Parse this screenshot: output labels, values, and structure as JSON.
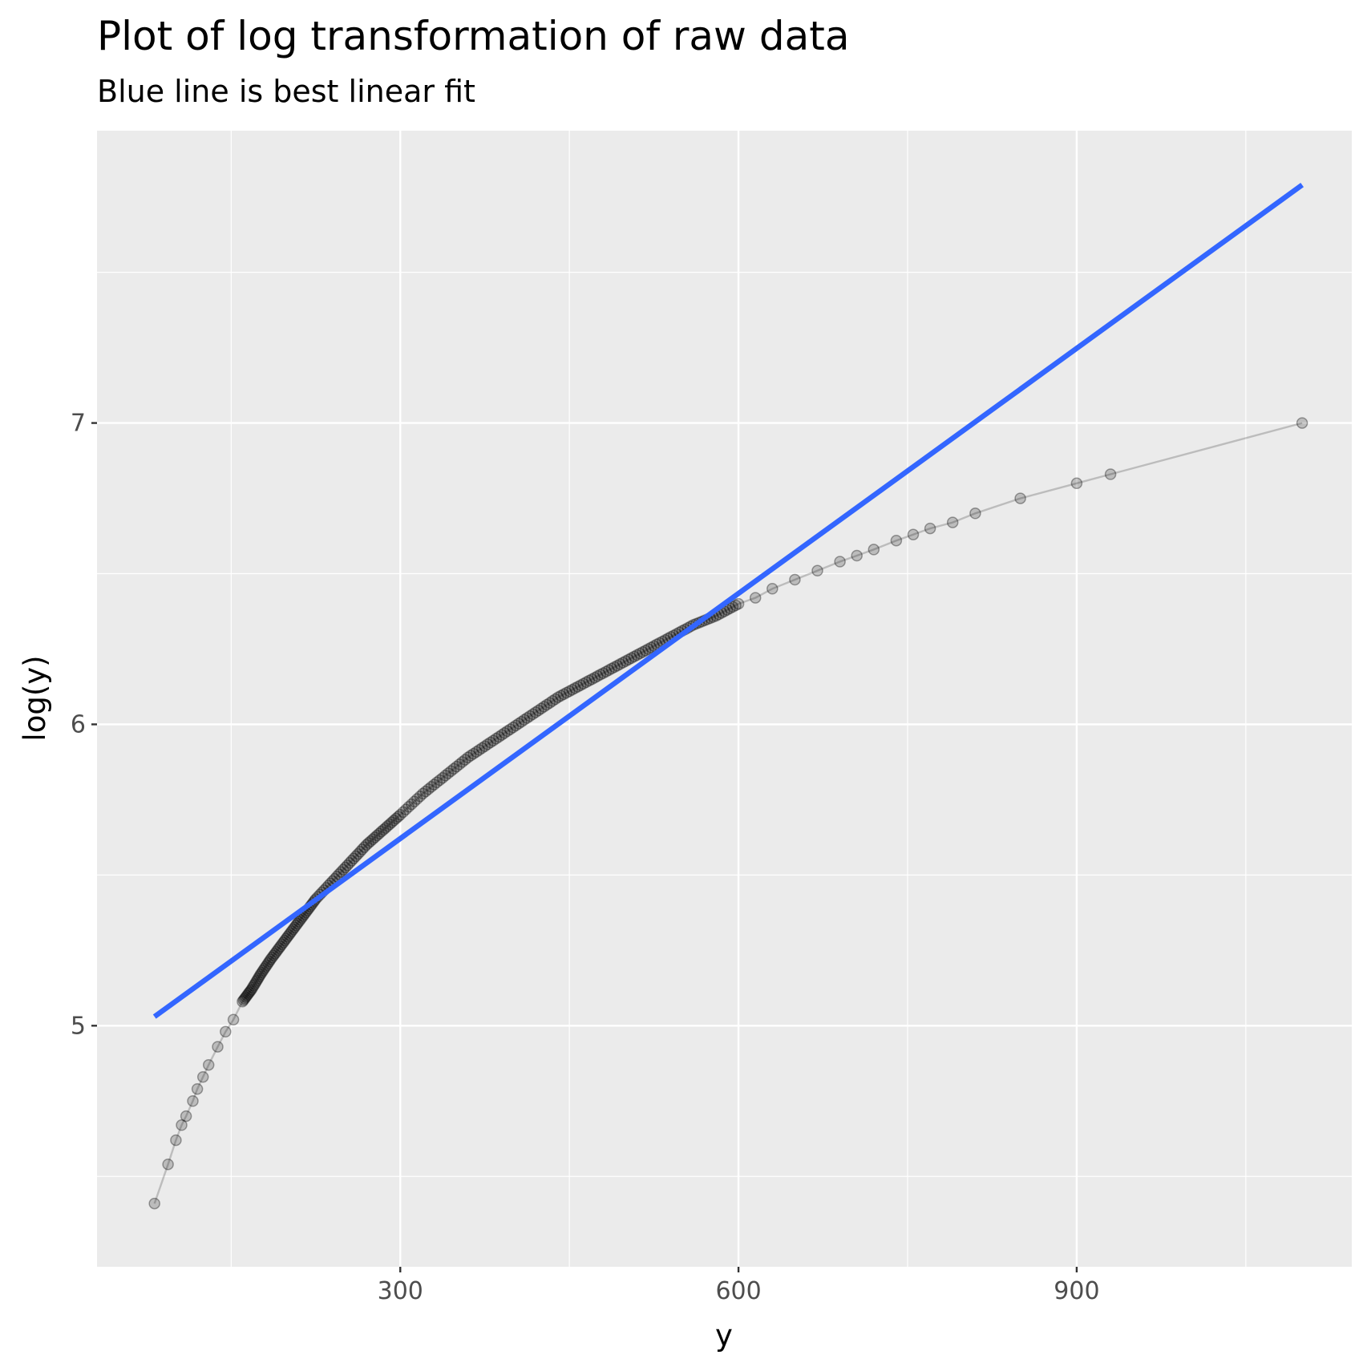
{
  "chart_data": {
    "type": "scatter",
    "title": "Plot of log transformation of raw data",
    "subtitle": "Blue line is best linear fit",
    "xlabel": "y",
    "ylabel": "log(y)",
    "xlim": [
      31,
      1144
    ],
    "ylim": [
      4.2,
      7.97
    ],
    "x_ticks": [
      300,
      600,
      900
    ],
    "y_ticks": [
      5,
      6,
      7
    ],
    "grid": true,
    "legend": "none",
    "colors": {
      "panel": "#ebebeb",
      "grid": "#ffffff",
      "points": "#000000",
      "fit_line": "#3366ff"
    },
    "series": [
      {
        "type": "line+points",
        "points": [
          [
            82,
            4.41
          ],
          [
            94,
            4.54
          ],
          [
            101,
            4.62
          ],
          [
            106,
            4.67
          ],
          [
            110,
            4.7
          ],
          [
            116,
            4.75
          ],
          [
            120,
            4.79
          ],
          [
            125,
            4.83
          ],
          [
            130,
            4.87
          ],
          [
            138,
            4.93
          ],
          [
            145,
            4.98
          ],
          [
            152,
            5.02
          ],
          [
            160,
            5.08
          ],
          [
            168,
            5.12
          ],
          [
            176,
            5.17
          ],
          [
            185,
            5.22
          ],
          [
            195,
            5.27
          ],
          [
            205,
            5.32
          ],
          [
            215,
            5.37
          ],
          [
            225,
            5.42
          ],
          [
            240,
            5.48
          ],
          [
            255,
            5.54
          ],
          [
            270,
            5.6
          ],
          [
            285,
            5.65
          ],
          [
            300,
            5.7
          ],
          [
            320,
            5.77
          ],
          [
            340,
            5.83
          ],
          [
            360,
            5.89
          ],
          [
            380,
            5.94
          ],
          [
            400,
            5.99
          ],
          [
            420,
            6.04
          ],
          [
            440,
            6.09
          ],
          [
            460,
            6.13
          ],
          [
            480,
            6.17
          ],
          [
            500,
            6.21
          ],
          [
            520,
            6.25
          ],
          [
            540,
            6.29
          ],
          [
            560,
            6.33
          ],
          [
            580,
            6.36
          ],
          [
            600,
            6.4
          ],
          [
            615,
            6.42
          ],
          [
            630,
            6.45
          ],
          [
            650,
            6.48
          ],
          [
            670,
            6.51
          ],
          [
            690,
            6.54
          ],
          [
            705,
            6.56
          ],
          [
            720,
            6.58
          ],
          [
            740,
            6.61
          ],
          [
            755,
            6.63
          ],
          [
            770,
            6.65
          ],
          [
            790,
            6.67
          ],
          [
            810,
            6.7
          ],
          [
            850,
            6.75
          ],
          [
            900,
            6.8
          ],
          [
            930,
            6.83
          ],
          [
            1100,
            7.0
          ]
        ]
      }
    ],
    "fit_line": {
      "color": "#3366ff",
      "x": [
        82,
        1100
      ],
      "y": [
        5.03,
        7.79
      ]
    }
  }
}
